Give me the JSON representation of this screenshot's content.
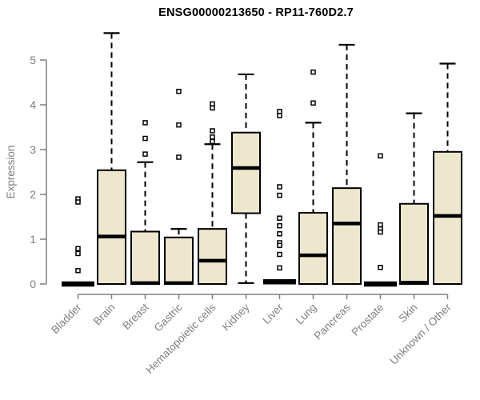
{
  "chart_data": {
    "type": "boxplot",
    "title": "ENSG00000213650 - RP11-760D2.7",
    "ylabel": "Expression",
    "xlabel": "",
    "ylim": [
      0,
      5
    ],
    "yticks": [
      0,
      1,
      2,
      3,
      4,
      5
    ],
    "grid": false,
    "legend": null,
    "categories": [
      "Bladder",
      "Brain",
      "Breast",
      "Gastric",
      "Hematopoietic cells",
      "Kidney",
      "Liver",
      "Lung",
      "Pancreas",
      "Prostate",
      "Skin",
      "Unknown / Other"
    ],
    "boxes": [
      {
        "label": "Bladder",
        "q1": 0,
        "median": 0,
        "q3": 0,
        "whisker_low": 0,
        "whisker_high": 0,
        "outliers": [
          1.9,
          1.83,
          0.79,
          0.68,
          0.3
        ]
      },
      {
        "label": "Brain",
        "q1": 0,
        "median": 1.06,
        "q3": 2.54,
        "whisker_low": 0,
        "whisker_high": 5.6,
        "outliers": []
      },
      {
        "label": "Breast",
        "q1": 0,
        "median": 0.02,
        "q3": 1.17,
        "whisker_low": 0,
        "whisker_high": 2.72,
        "outliers": [
          3.6,
          3.25,
          2.9
        ]
      },
      {
        "label": "Gastric",
        "q1": 0,
        "median": 0.02,
        "q3": 1.04,
        "whisker_low": 0,
        "whisker_high": 1.23,
        "outliers": [
          4.3,
          3.55,
          2.83
        ]
      },
      {
        "label": "Hematopoietic cells",
        "q1": 0,
        "median": 0.52,
        "q3": 1.23,
        "whisker_low": 0,
        "whisker_high": 3.12,
        "outliers": [
          4.02,
          3.93,
          3.42,
          3.28,
          3.18
        ]
      },
      {
        "label": "Kidney",
        "q1": 1.58,
        "median": 2.59,
        "q3": 3.38,
        "whisker_low": 0.02,
        "whisker_high": 4.68,
        "outliers": []
      },
      {
        "label": "Liver",
        "q1": 0.05,
        "median": 0.05,
        "q3": 0.05,
        "whisker_low": 0.05,
        "whisker_high": 0.05,
        "outliers": [
          3.85,
          3.76,
          2.17,
          1.98,
          1.47,
          1.3,
          1.12,
          0.92,
          0.86,
          0.66,
          0.36
        ]
      },
      {
        "label": "Lung",
        "q1": 0,
        "median": 0.64,
        "q3": 1.59,
        "whisker_low": 0,
        "whisker_high": 3.6,
        "outliers": [
          4.73,
          4.04
        ]
      },
      {
        "label": "Pancreas",
        "q1": 0,
        "median": 1.35,
        "q3": 2.14,
        "whisker_low": 0,
        "whisker_high": 5.34,
        "outliers": []
      },
      {
        "label": "Prostate",
        "q1": 0,
        "median": 0,
        "q3": 0,
        "whisker_low": 0,
        "whisker_high": 0,
        "outliers": [
          2.86,
          1.32,
          1.23,
          1.16,
          0.37
        ]
      },
      {
        "label": "Skin",
        "q1": 0,
        "median": 0.03,
        "q3": 1.79,
        "whisker_low": 0,
        "whisker_high": 3.81,
        "outliers": []
      },
      {
        "label": "Unknown / Other",
        "q1": 0,
        "median": 1.52,
        "q3": 2.95,
        "whisker_low": 0,
        "whisker_high": 4.92,
        "outliers": []
      }
    ],
    "colors": {
      "box_fill": "#ece7cd",
      "box_border": "#000000",
      "median": "#000000",
      "whisker": "#000000",
      "axis": "#7f7f7f",
      "tick_label": "#7f7f7f",
      "title": "#000000",
      "background": "#ffffff"
    }
  }
}
